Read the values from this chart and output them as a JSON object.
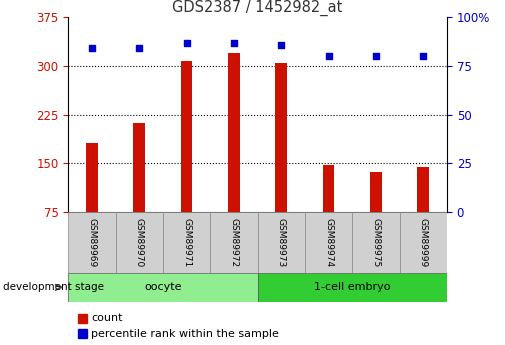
{
  "title": "GDS2387 / 1452982_at",
  "samples": [
    "GSM89969",
    "GSM89970",
    "GSM89971",
    "GSM89972",
    "GSM89973",
    "GSM89974",
    "GSM89975",
    "GSM89999"
  ],
  "counts": [
    182,
    213,
    308,
    320,
    305,
    148,
    137,
    145
  ],
  "percentiles": [
    84,
    84,
    87,
    87,
    86,
    80,
    80,
    80
  ],
  "groups": [
    {
      "label": "oocyte",
      "start": 0,
      "end": 3,
      "color": "#90ee90"
    },
    {
      "label": "1-cell embryo",
      "start": 4,
      "end": 7,
      "color": "#32cd32"
    }
  ],
  "bar_color": "#cc1100",
  "dot_color": "#0000cc",
  "ylim_left": [
    75,
    375
  ],
  "ylim_right": [
    0,
    100
  ],
  "yticks_left": [
    75,
    150,
    225,
    300,
    375
  ],
  "yticks_right": [
    0,
    25,
    50,
    75,
    100
  ],
  "grid_values": [
    150,
    225,
    300
  ],
  "left_tick_color": "#cc1100",
  "right_tick_color": "#0000cc",
  "title_color": "#333333",
  "stage_label": "development stage",
  "legend_count": "count",
  "legend_percentile": "percentile rank within the sample",
  "bar_width": 0.25
}
